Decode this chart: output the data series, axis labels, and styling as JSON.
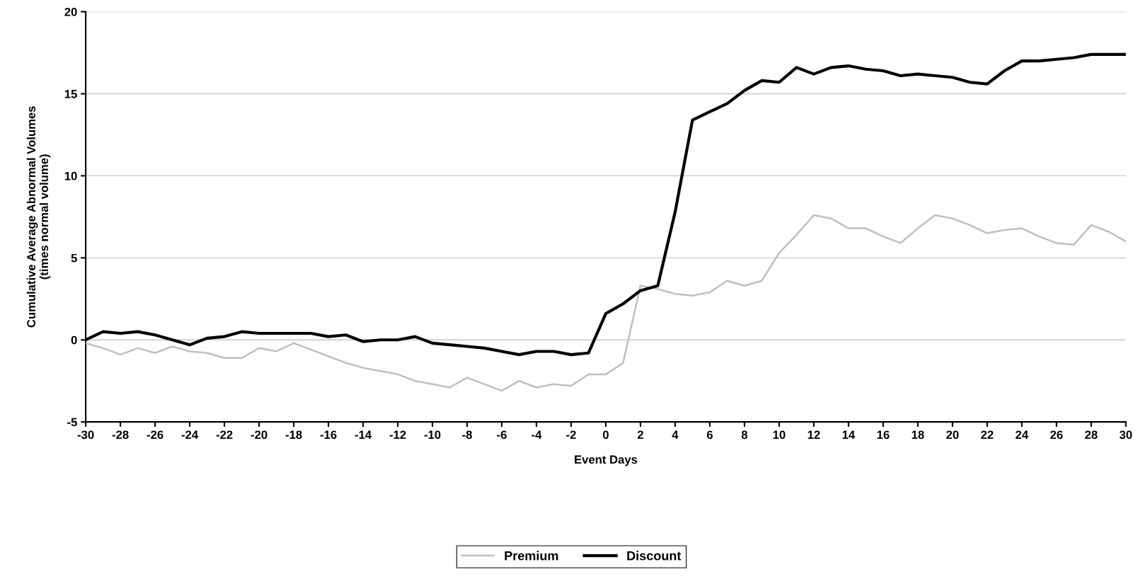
{
  "chart_data": {
    "type": "line",
    "xlabel": "Event Days",
    "ylabel": "Cumulative Average Abnormal Volumes\n(times normal volume)",
    "x": [
      -30,
      -29,
      -28,
      -27,
      -26,
      -25,
      -24,
      -23,
      -22,
      -21,
      -20,
      -19,
      -18,
      -17,
      -16,
      -15,
      -14,
      -13,
      -12,
      -11,
      -10,
      -9,
      -8,
      -7,
      -6,
      -5,
      -4,
      -3,
      -2,
      -1,
      0,
      1,
      2,
      3,
      4,
      5,
      6,
      7,
      8,
      9,
      10,
      11,
      12,
      13,
      14,
      15,
      16,
      17,
      18,
      19,
      20,
      21,
      22,
      23,
      24,
      25,
      26,
      27,
      28,
      29,
      30
    ],
    "series": [
      {
        "name": "Premium",
        "color": "#bfbfbf",
        "values": [
          -0.2,
          -0.5,
          -0.9,
          -0.5,
          -0.8,
          -0.4,
          -0.7,
          -0.8,
          -1.1,
          -1.1,
          -0.5,
          -0.7,
          -0.2,
          -0.6,
          -1.0,
          -1.4,
          -1.7,
          -1.9,
          -2.1,
          -2.5,
          -2.7,
          -2.9,
          -2.3,
          -2.7,
          -3.1,
          -2.5,
          -2.9,
          -2.7,
          -2.8,
          -2.1,
          -2.1,
          -1.4,
          3.3,
          3.1,
          2.8,
          2.7,
          2.9,
          3.6,
          3.3,
          3.6,
          5.3,
          6.4,
          7.6,
          7.4,
          6.8,
          6.8,
          6.3,
          5.9,
          6.8,
          7.6,
          7.4,
          7.0,
          6.5,
          6.7,
          6.8,
          6.3,
          5.9,
          5.8,
          7.0,
          6.6,
          6.0
        ]
      },
      {
        "name": "Discount",
        "color": "#000000",
        "values": [
          0.0,
          0.5,
          0.4,
          0.5,
          0.3,
          0.0,
          -0.3,
          0.1,
          0.2,
          0.5,
          0.4,
          0.4,
          0.4,
          0.4,
          0.2,
          0.3,
          -0.1,
          0.0,
          0.0,
          0.2,
          -0.2,
          -0.3,
          -0.4,
          -0.5,
          -0.7,
          -0.9,
          -0.7,
          -0.7,
          -0.9,
          -0.8,
          1.6,
          2.2,
          3.0,
          3.3,
          7.8,
          13.4,
          13.9,
          14.4,
          15.2,
          15.8,
          15.7,
          16.6,
          16.2,
          16.6,
          16.7,
          16.5,
          16.4,
          16.1,
          16.2,
          16.1,
          16.0,
          15.7,
          15.6,
          16.4,
          17.0,
          17.0,
          17.1,
          17.2,
          17.4,
          17.4,
          17.4
        ]
      }
    ],
    "xlim": [
      -30,
      30
    ],
    "xticks": [
      -30,
      -28,
      -26,
      -24,
      -22,
      -20,
      -18,
      -16,
      -14,
      -12,
      -10,
      -8,
      -6,
      -4,
      -2,
      0,
      2,
      4,
      6,
      8,
      10,
      12,
      14,
      16,
      18,
      20,
      22,
      24,
      26,
      28,
      30
    ],
    "ylim": [
      -5,
      20
    ],
    "yticks": [
      -5,
      0,
      5,
      10,
      15,
      20
    ],
    "grid": "y",
    "legend": "bottom",
    "marker": "none",
    "line_style": "solid"
  }
}
